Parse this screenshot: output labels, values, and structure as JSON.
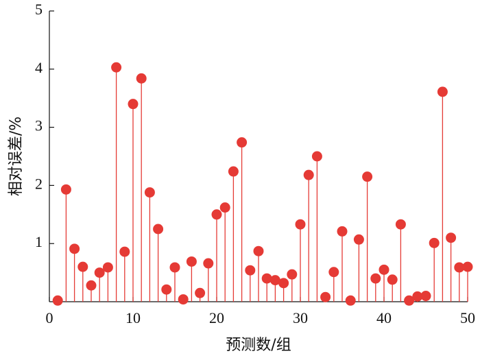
{
  "chart_data": {
    "type": "stem",
    "x_label": "预测数/组",
    "y_label": "相对误差/%",
    "x": [
      1,
      2,
      3,
      4,
      5,
      6,
      7,
      8,
      9,
      10,
      11,
      12,
      13,
      14,
      15,
      16,
      17,
      18,
      19,
      20,
      21,
      22,
      23,
      24,
      25,
      26,
      27,
      28,
      29,
      30,
      31,
      32,
      33,
      34,
      35,
      36,
      37,
      38,
      39,
      40,
      41,
      42,
      43,
      44,
      45,
      46,
      47,
      48,
      49,
      50
    ],
    "values": [
      0.02,
      1.93,
      0.91,
      0.6,
      0.28,
      0.5,
      0.59,
      4.03,
      0.86,
      3.4,
      3.84,
      1.88,
      1.25,
      0.21,
      0.59,
      0.04,
      0.69,
      0.15,
      0.66,
      1.5,
      1.62,
      2.24,
      2.74,
      0.54,
      0.87,
      0.4,
      0.37,
      0.32,
      0.47,
      1.33,
      2.18,
      2.5,
      0.08,
      0.51,
      1.21,
      0.02,
      1.07,
      2.15,
      0.4,
      0.55,
      0.38,
      1.33,
      0.02,
      0.09,
      0.1,
      1.01,
      3.61,
      1.1,
      0.59,
      0.6
    ],
    "color": "#e53a35",
    "xlim": [
      0,
      50
    ],
    "xticks": [
      0,
      10,
      20,
      30,
      40,
      50
    ],
    "ylim": [
      0,
      5
    ],
    "yticks": [
      1,
      2,
      3,
      4,
      5
    ]
  }
}
